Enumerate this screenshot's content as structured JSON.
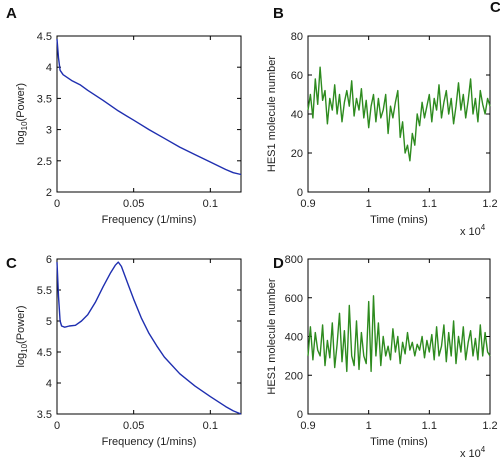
{
  "figure": {
    "corner_fragment": "C"
  },
  "chart_data": [
    {
      "panel": "A",
      "type": "line",
      "xlabel": "Frequency (1/mins)",
      "ylabel_main": "log",
      "ylabel_sub": "10",
      "ylabel_tail": "(Power)",
      "xlim": [
        0,
        0.12
      ],
      "ylim": [
        2,
        4.5
      ],
      "xticks": [
        "0",
        "0.05",
        "0.1"
      ],
      "xtick_values": [
        0,
        0.05,
        0.1
      ],
      "yticks": [
        "2",
        "2.5",
        "3",
        "3.5",
        "4",
        "4.5"
      ],
      "ytick_values": [
        2,
        2.5,
        3,
        3.5,
        4,
        4.5
      ],
      "color": "#1f2fb0",
      "series": [
        {
          "x": [
            0,
            0.001,
            0.002,
            0.004,
            0.007,
            0.01,
            0.015,
            0.02,
            0.03,
            0.04,
            0.05,
            0.06,
            0.07,
            0.08,
            0.09,
            0.1,
            0.11,
            0.115,
            0.12
          ],
          "y": [
            4.45,
            4.15,
            3.95,
            3.88,
            3.83,
            3.78,
            3.72,
            3.63,
            3.47,
            3.3,
            3.15,
            3.0,
            2.86,
            2.72,
            2.6,
            2.48,
            2.36,
            2.31,
            2.28
          ]
        }
      ]
    },
    {
      "panel": "B",
      "type": "line",
      "xlabel": "Time (mins)",
      "ylabel": "HES1 molecule number",
      "xlim": [
        9000,
        12000
      ],
      "ylim": [
        0,
        80
      ],
      "xticks": [
        "0.9",
        "1",
        "1.1",
        "1.2"
      ],
      "xtick_values": [
        9000,
        10000,
        11000,
        12000
      ],
      "x_multiplier": "x 10",
      "x_multiplier_exp": "4",
      "yticks": [
        "0",
        "20",
        "40",
        "60",
        "80"
      ],
      "ytick_values": [
        0,
        20,
        40,
        60,
        80
      ],
      "color": "#2e8b1f",
      "series": [
        {
          "x": [
            9000,
            9040,
            9080,
            9120,
            9160,
            9200,
            9240,
            9280,
            9320,
            9360,
            9400,
            9440,
            9480,
            9520,
            9560,
            9600,
            9640,
            9680,
            9720,
            9760,
            9800,
            9840,
            9880,
            9920,
            9960,
            10000,
            10040,
            10080,
            10120,
            10160,
            10200,
            10240,
            10280,
            10320,
            10360,
            10400,
            10440,
            10480,
            10520,
            10560,
            10600,
            10640,
            10680,
            10720,
            10760,
            10800,
            10840,
            10880,
            10920,
            10960,
            11000,
            11040,
            11080,
            11120,
            11160,
            11200,
            11240,
            11280,
            11320,
            11360,
            11400,
            11440,
            11480,
            11520,
            11560,
            11600,
            11640,
            11680,
            11720,
            11760,
            11800,
            11840,
            11880,
            11920,
            11960,
            12000
          ],
          "y": [
            42,
            50,
            38,
            58,
            45,
            64,
            47,
            52,
            35,
            48,
            42,
            55,
            40,
            50,
            36,
            46,
            52,
            44,
            57,
            39,
            48,
            42,
            53,
            38,
            47,
            33,
            44,
            50,
            36,
            48,
            38,
            42,
            50,
            30,
            44,
            38,
            46,
            52,
            28,
            36,
            20,
            24,
            16,
            30,
            24,
            40,
            34,
            46,
            38,
            44,
            50,
            36,
            48,
            42,
            55,
            38,
            46,
            52,
            40,
            48,
            35,
            44,
            56,
            42,
            50,
            38,
            47,
            58,
            40,
            48,
            36,
            52,
            45,
            40,
            48,
            44
          ]
        }
      ]
    },
    {
      "panel": "C",
      "type": "line",
      "xlabel": "Frequency (1/mins)",
      "ylabel_main": "log",
      "ylabel_sub": "10",
      "ylabel_tail": "(Power)",
      "xlim": [
        0,
        0.12
      ],
      "ylim": [
        3.5,
        6
      ],
      "xticks": [
        "0",
        "0.05",
        "0.1"
      ],
      "xtick_values": [
        0,
        0.05,
        0.1
      ],
      "yticks": [
        "3.5",
        "4",
        "4.5",
        "5",
        "5.5",
        "6"
      ],
      "ytick_values": [
        3.5,
        4,
        4.5,
        5,
        5.5,
        6
      ],
      "color": "#1f2fb0",
      "series": [
        {
          "x": [
            0,
            0.001,
            0.002,
            0.003,
            0.005,
            0.008,
            0.012,
            0.016,
            0.02,
            0.025,
            0.03,
            0.035,
            0.038,
            0.04,
            0.042,
            0.045,
            0.05,
            0.055,
            0.06,
            0.065,
            0.07,
            0.08,
            0.09,
            0.1,
            0.11,
            0.115,
            0.12
          ],
          "y": [
            5.95,
            5.4,
            5.0,
            4.92,
            4.9,
            4.92,
            4.93,
            5.0,
            5.1,
            5.3,
            5.55,
            5.78,
            5.9,
            5.95,
            5.88,
            5.68,
            5.35,
            5.05,
            4.8,
            4.6,
            4.42,
            4.15,
            3.95,
            3.78,
            3.62,
            3.55,
            3.5
          ]
        }
      ]
    },
    {
      "panel": "D",
      "type": "line",
      "xlabel": "Time (mins)",
      "ylabel": "HES1 molecule number",
      "xlim": [
        9000,
        12000
      ],
      "ylim": [
        0,
        800
      ],
      "xticks": [
        "0.9",
        "1",
        "1.1",
        "1.2"
      ],
      "xtick_values": [
        9000,
        10000,
        11000,
        12000
      ],
      "x_multiplier": "x 10",
      "x_multiplier_exp": "4",
      "yticks": [
        "0",
        "200",
        "400",
        "600",
        "800"
      ],
      "ytick_values": [
        0,
        200,
        400,
        600,
        800
      ],
      "color": "#2e8b1f",
      "series": [
        {
          "x": [
            9000,
            9040,
            9080,
            9120,
            9160,
            9200,
            9240,
            9280,
            9320,
            9360,
            9400,
            9440,
            9480,
            9520,
            9560,
            9600,
            9640,
            9680,
            9720,
            9760,
            9800,
            9840,
            9880,
            9920,
            9960,
            10000,
            10040,
            10080,
            10120,
            10160,
            10200,
            10240,
            10280,
            10320,
            10360,
            10400,
            10440,
            10480,
            10520,
            10560,
            10600,
            10640,
            10680,
            10720,
            10760,
            10800,
            10840,
            10880,
            10920,
            10960,
            11000,
            11040,
            11080,
            11120,
            11160,
            11200,
            11240,
            11280,
            11320,
            11360,
            11400,
            11440,
            11480,
            11520,
            11560,
            11600,
            11640,
            11680,
            11720,
            11760,
            11800,
            11840,
            11880,
            11920,
            11960,
            12000
          ],
          "y": [
            300,
            450,
            280,
            420,
            330,
            300,
            460,
            250,
            380,
            290,
            470,
            240,
            360,
            520,
            270,
            430,
            220,
            560,
            300,
            250,
            480,
            230,
            420,
            300,
            260,
            580,
            220,
            610,
            300,
            470,
            250,
            400,
            300,
            350,
            280,
            440,
            320,
            400,
            260,
            370,
            310,
            420,
            330,
            370,
            300,
            360,
            330,
            400,
            290,
            380,
            320,
            410,
            280,
            450,
            300,
            350,
            460,
            270,
            420,
            300,
            480,
            260,
            400,
            320,
            450,
            280,
            370,
            430,
            300,
            390,
            280,
            460,
            300,
            420,
            320,
            300
          ]
        }
      ]
    }
  ]
}
